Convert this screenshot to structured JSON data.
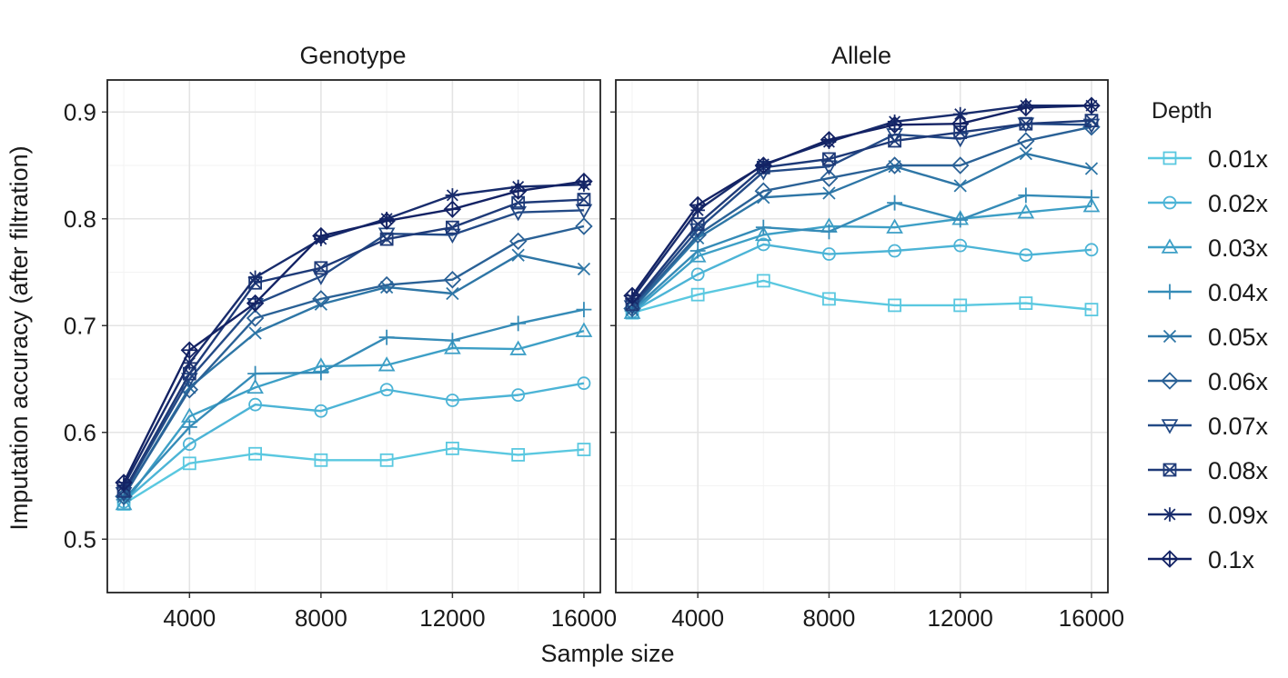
{
  "chart_data": {
    "type": "line",
    "facet_titles": [
      "Genotype",
      "Allele"
    ],
    "xlabel": "Sample size",
    "ylabel": "Imputation accuracy (after filtration)",
    "xlim": [
      1500,
      16500
    ],
    "ylim": [
      0.45,
      0.93
    ],
    "x_ticks": [
      4000,
      8000,
      12000,
      16000
    ],
    "y_ticks": [
      0.5,
      0.6,
      0.7,
      0.8,
      0.9
    ],
    "grid": true,
    "legend": {
      "title": "Depth",
      "position": "right"
    },
    "x": [
      2000,
      4000,
      6000,
      8000,
      10000,
      12000,
      14000,
      16000
    ],
    "series": [
      {
        "name": "0.01x",
        "marker": "square",
        "color": "#5ac8e0",
        "genotype": [
          0.533,
          0.571,
          0.58,
          0.574,
          0.574,
          0.585,
          0.579,
          0.584
        ],
        "allele": [
          0.712,
          0.729,
          0.742,
          0.725,
          0.719,
          0.719,
          0.721,
          0.715
        ]
      },
      {
        "name": "0.02x",
        "marker": "circle",
        "color": "#4cb4d6",
        "genotype": [
          0.535,
          0.589,
          0.626,
          0.62,
          0.64,
          0.63,
          0.635,
          0.646
        ],
        "allele": [
          0.713,
          0.748,
          0.776,
          0.767,
          0.77,
          0.775,
          0.766,
          0.771
        ]
      },
      {
        "name": "0.03x",
        "marker": "triangle",
        "color": "#3d9fc6",
        "genotype": [
          0.533,
          0.615,
          0.642,
          0.662,
          0.663,
          0.679,
          0.678,
          0.695
        ],
        "allele": [
          0.712,
          0.765,
          0.785,
          0.793,
          0.792,
          0.8,
          0.806,
          0.812
        ]
      },
      {
        "name": "0.04x",
        "marker": "plus",
        "color": "#358bb7",
        "genotype": [
          0.537,
          0.605,
          0.655,
          0.656,
          0.689,
          0.686,
          0.702,
          0.715
        ],
        "allele": [
          0.714,
          0.77,
          0.792,
          0.788,
          0.815,
          0.799,
          0.822,
          0.82
        ]
      },
      {
        "name": "0.05x",
        "marker": "x",
        "color": "#2e76a6",
        "genotype": [
          0.54,
          0.642,
          0.693,
          0.72,
          0.736,
          0.73,
          0.766,
          0.753
        ],
        "allele": [
          0.715,
          0.782,
          0.82,
          0.824,
          0.849,
          0.831,
          0.861,
          0.847
        ]
      },
      {
        "name": "0.06x",
        "marker": "diamond",
        "color": "#2a6196",
        "genotype": [
          0.54,
          0.64,
          0.707,
          0.725,
          0.738,
          0.743,
          0.779,
          0.793
        ],
        "allele": [
          0.716,
          0.785,
          0.826,
          0.838,
          0.85,
          0.85,
          0.873,
          0.886
        ]
      },
      {
        "name": "0.07x",
        "marker": "triangle-down",
        "color": "#234a86",
        "genotype": [
          0.543,
          0.65,
          0.72,
          0.746,
          0.786,
          0.785,
          0.806,
          0.808
        ],
        "allele": [
          0.718,
          0.79,
          0.844,
          0.849,
          0.879,
          0.875,
          0.889,
          0.888
        ]
      },
      {
        "name": "0.08x",
        "marker": "square-x",
        "color": "#1e3a78",
        "genotype": [
          0.545,
          0.655,
          0.74,
          0.754,
          0.781,
          0.792,
          0.815,
          0.818
        ],
        "allele": [
          0.72,
          0.795,
          0.848,
          0.856,
          0.873,
          0.881,
          0.889,
          0.892
        ]
      },
      {
        "name": "0.09x",
        "marker": "asterisk",
        "color": "#182c6c",
        "genotype": [
          0.55,
          0.665,
          0.745,
          0.781,
          0.8,
          0.822,
          0.83,
          0.832
        ],
        "allele": [
          0.725,
          0.808,
          0.851,
          0.872,
          0.891,
          0.898,
          0.906,
          0.906
        ]
      },
      {
        "name": "0.1x",
        "marker": "diamond-plus",
        "color": "#132264",
        "genotype": [
          0.553,
          0.677,
          0.721,
          0.784,
          0.798,
          0.809,
          0.826,
          0.835
        ],
        "allele": [
          0.728,
          0.813,
          0.85,
          0.874,
          0.888,
          0.889,
          0.904,
          0.906
        ]
      }
    ]
  }
}
